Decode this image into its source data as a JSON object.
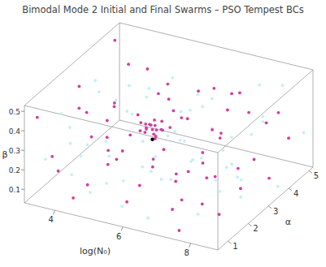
{
  "chart_data": {
    "type": "scatter",
    "title": "Bimodal Mode 2 Initial and Final Swarms – PSO Tempest BCs",
    "x_label": "log(N₀)",
    "y_label": "α",
    "z_label": "β",
    "xlim": [
      3.1,
      8.8
    ],
    "ylim": [
      0.5,
      5.2
    ],
    "zlim": [
      0.03,
      0.53
    ],
    "xticks": [
      4,
      6,
      8
    ],
    "yticks": [
      1,
      2,
      3,
      4,
      5
    ],
    "zticks": [
      0.1,
      0.2,
      0.3,
      0.4,
      0.5
    ],
    "grid": false,
    "series": [
      {
        "color": "#c6eef6",
        "marker": "point",
        "x": [
          3.3,
          3.4,
          3.6,
          3.8,
          4.0,
          4.1,
          4.3,
          4.5,
          4.6,
          4.8,
          4.9,
          5.0,
          5.2,
          5.3,
          5.5,
          5.6,
          5.8,
          5.9,
          6.1,
          6.2,
          6.4,
          6.5,
          6.7,
          6.8,
          7.0,
          7.1,
          7.3,
          7.4,
          7.6,
          7.7,
          7.9,
          8.0,
          8.2,
          8.3,
          8.5,
          8.6,
          8.7,
          3.5,
          3.9,
          4.2,
          4.7,
          5.1,
          5.4,
          5.7,
          6.0,
          6.3,
          6.6,
          6.9,
          7.2,
          7.5,
          7.8,
          8.1,
          8.4,
          8.7,
          3.2,
          4.4,
          5.0,
          6.1,
          7.0,
          8.0
        ],
        "y": [
          1.2,
          3.5,
          2.0,
          4.5,
          0.8,
          3.0,
          1.6,
          4.0,
          2.5,
          0.9,
          4.8,
          2.2,
          1.0,
          3.9,
          1.8,
          4.5,
          0.8,
          3.5,
          1.3,
          4.1,
          2.7,
          0.9,
          4.7,
          2.2,
          1.4,
          3.6,
          0.7,
          4.9,
          2.6,
          4.0,
          1.2,
          3.0,
          4.7,
          2.3,
          0.9,
          3.8,
          1.8,
          4.9,
          1.4,
          4.7,
          0.6,
          3.3,
          0.7,
          2.4,
          4.9,
          1.9,
          3.2,
          0.6,
          2.9,
          1.7,
          4.4,
          2.1,
          3.4,
          4.9,
          2.6,
          2.0,
          1.5,
          3.7,
          4.2,
          0.6
        ],
        "z": [
          0.2,
          0.4,
          0.06,
          0.3,
          0.5,
          0.18,
          0.28,
          0.09,
          0.44,
          0.12,
          0.36,
          0.07,
          0.39,
          0.16,
          0.47,
          0.25,
          0.1,
          0.2,
          0.27,
          0.33,
          0.44,
          0.06,
          0.14,
          0.35,
          0.48,
          0.19,
          0.31,
          0.42,
          0.09,
          0.26,
          0.4,
          0.13,
          0.47,
          0.22,
          0.34,
          0.05,
          0.18,
          0.12,
          0.37,
          0.24,
          0.33,
          0.45,
          0.21,
          0.13,
          0.29,
          0.16,
          0.49,
          0.42,
          0.37,
          0.05,
          0.32,
          0.28,
          0.41,
          0.23,
          0.15,
          0.52,
          0.26,
          0.08,
          0.06,
          0.45
        ]
      },
      {
        "color": "#d43d9e",
        "marker": "point",
        "x": [
          3.3,
          3.5,
          3.4,
          3.6,
          3.2,
          3.8,
          3.9,
          4.1,
          4.0,
          4.3,
          4.4,
          4.2,
          4.6,
          4.7,
          4.5,
          4.9,
          4.8,
          5.0,
          5.1,
          5.2,
          5.3,
          5.4,
          5.6,
          5.7,
          5.8,
          5.9,
          6.0,
          6.1,
          6.2,
          6.3,
          6.4,
          6.5,
          6.6,
          6.7,
          6.8,
          6.9,
          7.0,
          7.1,
          7.2,
          7.3,
          7.4,
          7.5,
          7.6,
          7.7,
          7.8,
          7.9,
          8.0,
          8.1,
          8.2,
          8.3,
          8.4,
          8.5,
          8.6,
          8.7,
          3.7,
          4.4,
          5.5,
          6.3,
          7.6,
          8.5,
          4.9,
          6.0,
          5.5,
          5.4,
          5.6,
          5.3,
          5.7,
          5.5,
          5.4,
          5.6,
          5.2,
          5.8,
          5.5,
          5.3,
          5.7,
          5.5,
          5.6,
          5.4,
          5.9,
          5.1
        ],
        "y": [
          0.8,
          1.5,
          2.7,
          4.1,
          4.8,
          0.7,
          3.3,
          1.9,
          4.6,
          0.9,
          2.4,
          3.8,
          1.3,
          4.9,
          3.0,
          0.6,
          2.1,
          4.2,
          1.7,
          3.6,
          0.9,
          4.7,
          2.0,
          3.9,
          1.2,
          4.4,
          0.7,
          2.6,
          3.4,
          1.5,
          5.0,
          2.3,
          4.0,
          0.8,
          3.1,
          1.9,
          4.6,
          2.8,
          1.1,
          3.7,
          0.6,
          2.4,
          4.3,
          1.6,
          3.3,
          5.0,
          2.0,
          0.9,
          3.9,
          1.4,
          2.7,
          4.5,
          0.7,
          3.2,
          2.2,
          4.4,
          0.6,
          4.8,
          0.6,
          2.0,
          3.5,
          3.0,
          2.8,
          2.9,
          2.7,
          2.8,
          2.9,
          3.0,
          2.6,
          3.1,
          2.7,
          2.8,
          2.5,
          3.0,
          2.6,
          2.9,
          2.8,
          3.1,
          3.0,
          2.9
        ],
        "z": [
          0.45,
          0.12,
          0.33,
          0.22,
          0.48,
          0.28,
          0.08,
          0.41,
          0.15,
          0.07,
          0.25,
          0.49,
          0.36,
          0.31,
          0.13,
          0.19,
          0.47,
          0.05,
          0.23,
          0.4,
          0.51,
          0.18,
          0.09,
          0.27,
          0.43,
          0.37,
          0.14,
          0.5,
          0.06,
          0.3,
          0.24,
          0.16,
          0.45,
          0.34,
          0.21,
          0.08,
          0.39,
          0.12,
          0.26,
          0.48,
          0.17,
          0.42,
          0.1,
          0.33,
          0.05,
          0.29,
          0.46,
          0.2,
          0.35,
          0.11,
          0.52,
          0.23,
          0.38,
          0.15,
          0.5,
          0.42,
          0.32,
          0.11,
          0.07,
          0.3,
          0.22,
          0.4,
          0.3,
          0.31,
          0.29,
          0.32,
          0.3,
          0.28,
          0.3,
          0.32,
          0.29,
          0.31,
          0.33,
          0.3,
          0.28,
          0.34,
          0.27,
          0.29,
          0.31,
          0.31
        ]
      },
      {
        "color": "#000000",
        "marker": "point",
        "x": [
          5.5
        ],
        "y": [
          2.8
        ],
        "z": [
          0.25
        ]
      }
    ]
  }
}
